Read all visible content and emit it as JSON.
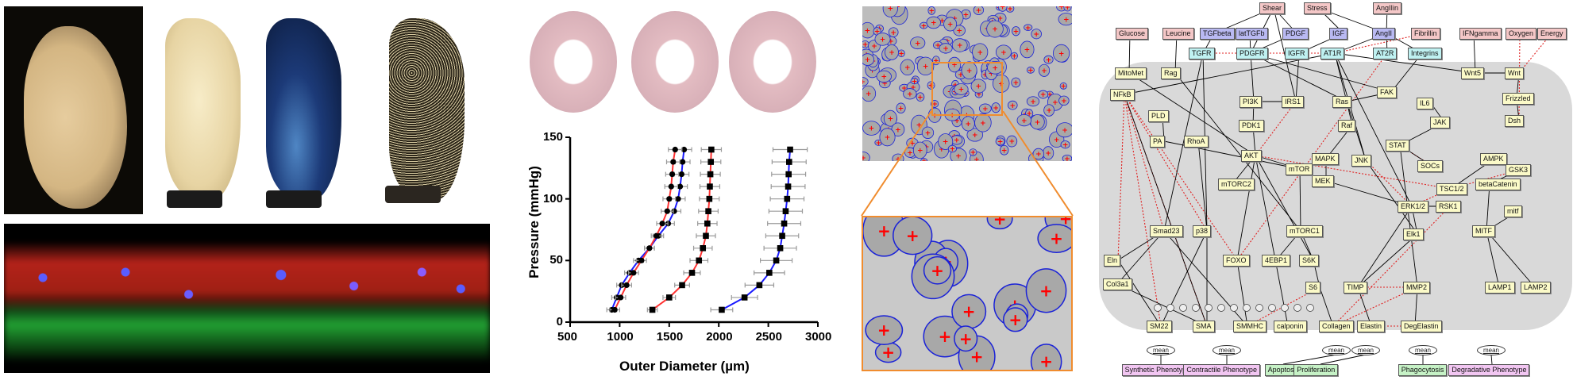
{
  "figure": {
    "panels": {
      "photos": {
        "labels": [
          "native-aorta-photo",
          "decellularized-scaffold-photo",
          "blue-stained-scaffold-photo",
          "speckled-scaffold-photo"
        ]
      },
      "fluorescence": {
        "channels": [
          "red",
          "green",
          "blue"
        ]
      },
      "histology": {
        "count": 3
      },
      "micrograph": {
        "inset_color": "#f08c2e",
        "ellipse_color": "#1a22d8",
        "marker_color": "#ff0000"
      }
    }
  },
  "chart_data": {
    "type": "line",
    "title": "",
    "xlabel": "Outer Diameter (µm)",
    "ylabel": "Pressure (mmHg)",
    "xlim": [
      500,
      3000
    ],
    "ylim": [
      0,
      150
    ],
    "xticks": [
      500,
      1000,
      1500,
      2000,
      2500,
      3000
    ],
    "yticks": [
      0,
      50,
      100,
      150
    ],
    "grid": false,
    "legend": null,
    "y": [
      10,
      20,
      30,
      40,
      50,
      60,
      70,
      80,
      90,
      100,
      110,
      120,
      130,
      140
    ],
    "series": [
      {
        "name": "circles-blue-line",
        "marker": "circle",
        "line_color": "#1a1aff",
        "x": [
          920,
          970,
          1020,
          1100,
          1190,
          1300,
          1390,
          1490,
          1550,
          1590,
          1610,
          1625,
          1635,
          1650
        ]
      },
      {
        "name": "circles-red-line",
        "marker": "circle",
        "line_color": "#ff3333",
        "x": [
          950,
          1010,
          1070,
          1140,
          1220,
          1300,
          1370,
          1430,
          1480,
          1500,
          1520,
          1530,
          1540,
          1560
        ]
      },
      {
        "name": "squares-red-line",
        "marker": "square",
        "line_color": "#ff3333",
        "x": [
          1330,
          1500,
          1630,
          1730,
          1800,
          1840,
          1870,
          1885,
          1895,
          1905,
          1910,
          1915,
          1920,
          1925
        ]
      },
      {
        "name": "squares-blue-line",
        "marker": "square",
        "line_color": "#1a1aff",
        "x": [
          2030,
          2260,
          2410,
          2510,
          2580,
          2620,
          2640,
          2660,
          2675,
          2690,
          2700,
          2705,
          2710,
          2720
        ]
      }
    ],
    "error_bar_color": "#9a9a9a"
  },
  "network": {
    "inputs": [
      "Shear",
      "Stress",
      "AngIIin",
      "Glucose",
      "Leucine",
      "Fibrillin",
      "IFNgamma",
      "Oxygen",
      "Energy"
    ],
    "ligands": [
      "TGFbeta",
      "latTGFb",
      "PDGF",
      "IGF",
      "AngII"
    ],
    "receptors": [
      "TGFR",
      "PDGFR",
      "IGFR",
      "AT1R",
      "AT2R",
      "Integrins"
    ],
    "internal": [
      "MitoMet",
      "Rag",
      "NFkB",
      "PLD",
      "PA",
      "RhoA",
      "PI3K",
      "IRS1",
      "PDK1",
      "AKT",
      "Ras",
      "Raf",
      "FAK",
      "IL6",
      "JAK",
      "STAT",
      "SOCs",
      "MAPK",
      "MEK",
      "JNK",
      "mTOR",
      "mTORC2",
      "mTORC1",
      "Wnt5",
      "Wnt",
      "Frizzled",
      "Dsh",
      "AMPK",
      "GSK3",
      "TSC1/2",
      "RSK1",
      "ERK1/2",
      "Elk1",
      "betaCatenin",
      "mitf",
      "MITF",
      "Smad23",
      "p38",
      "FOXO",
      "4EBP1",
      "S6K",
      "S6",
      "TIMP",
      "MMP2",
      "LAMP1",
      "LAMP2",
      "Eln",
      "Col3a1",
      "SM22",
      "SMA",
      "SMMHC",
      "calponin",
      "Collagen",
      "Elastin",
      "DegElastin"
    ],
    "mean_label": "mean",
    "outputs": [
      "Synthetic Phenotype",
      "Contractile Phenotype",
      "Apoptosis",
      "Proliferation",
      "Phagocytosis",
      "Degradative Phenotype"
    ],
    "and_gate_symbol": "&",
    "colors": {
      "input": "#f4c7c7",
      "ligand": "#b9b9f2",
      "receptor": "#bff1f1",
      "internal": "#fbfac8",
      "output_pink": "#f2c6f2",
      "output_green": "#c6f2c6",
      "activation_edge": "#000000",
      "inhibition_edge": "#e02020",
      "cell_bg": "#d9d9d9"
    }
  }
}
